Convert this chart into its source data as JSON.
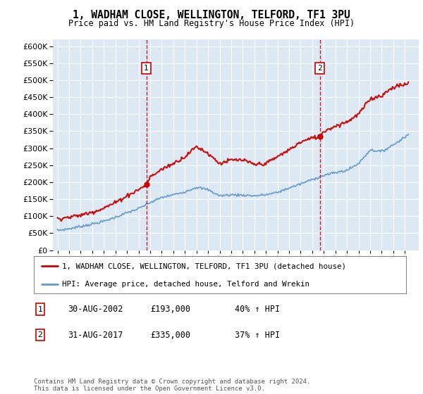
{
  "title": "1, WADHAM CLOSE, WELLINGTON, TELFORD, TF1 3PU",
  "subtitle": "Price paid vs. HM Land Registry's House Price Index (HPI)",
  "bg_color": "#dce9f5",
  "sale1_date": "30-AUG-2002",
  "sale1_price": 193000,
  "sale1_pct": "40%",
  "sale2_date": "31-AUG-2017",
  "sale2_price": 335000,
  "sale2_pct": "37%",
  "legend_label_red": "1, WADHAM CLOSE, WELLINGTON, TELFORD, TF1 3PU (detached house)",
  "legend_label_blue": "HPI: Average price, detached house, Telford and Wrekin",
  "footer": "Contains HM Land Registry data © Crown copyright and database right 2024.\nThis data is licensed under the Open Government Licence v3.0.",
  "red_color": "#cc0000",
  "blue_color": "#6699cc",
  "ylim_min": 0,
  "ylim_max": 620000,
  "sale1_x": 2002.67,
  "sale2_x": 2017.67,
  "hpi_x": [
    1995,
    1996,
    1997,
    1998,
    1999,
    2000,
    2001,
    2002,
    2003,
    2004,
    2005,
    2006,
    2007,
    2008,
    2009,
    2010,
    2011,
    2012,
    2013,
    2014,
    2015,
    2016,
    2017,
    2018,
    2019,
    2020,
    2021,
    2022,
    2023,
    2024,
    2025.3
  ],
  "hpi_y": [
    58000,
    63000,
    70000,
    77000,
    85000,
    97000,
    110000,
    122000,
    140000,
    155000,
    163000,
    172000,
    185000,
    178000,
    160000,
    163000,
    162000,
    160000,
    163000,
    170000,
    183000,
    195000,
    208000,
    220000,
    228000,
    235000,
    255000,
    295000,
    290000,
    310000,
    340000
  ],
  "red_x": [
    1995,
    1996,
    1997,
    1998,
    1999,
    2000,
    2001,
    2002,
    2002.67,
    2003,
    2004,
    2005,
    2006,
    2007,
    2008,
    2009,
    2010,
    2011,
    2012,
    2013,
    2014,
    2015,
    2016,
    2017,
    2017.67,
    2018,
    2019,
    2020,
    2021,
    2022,
    2023,
    2024,
    2025.3
  ],
  "red_y": [
    93000,
    97000,
    103000,
    112000,
    124000,
    140000,
    160000,
    178000,
    193000,
    215000,
    238000,
    255000,
    275000,
    305000,
    285000,
    255000,
    265000,
    265000,
    252000,
    255000,
    275000,
    295000,
    318000,
    330000,
    335000,
    350000,
    365000,
    378000,
    400000,
    445000,
    455000,
    480000,
    490000
  ]
}
